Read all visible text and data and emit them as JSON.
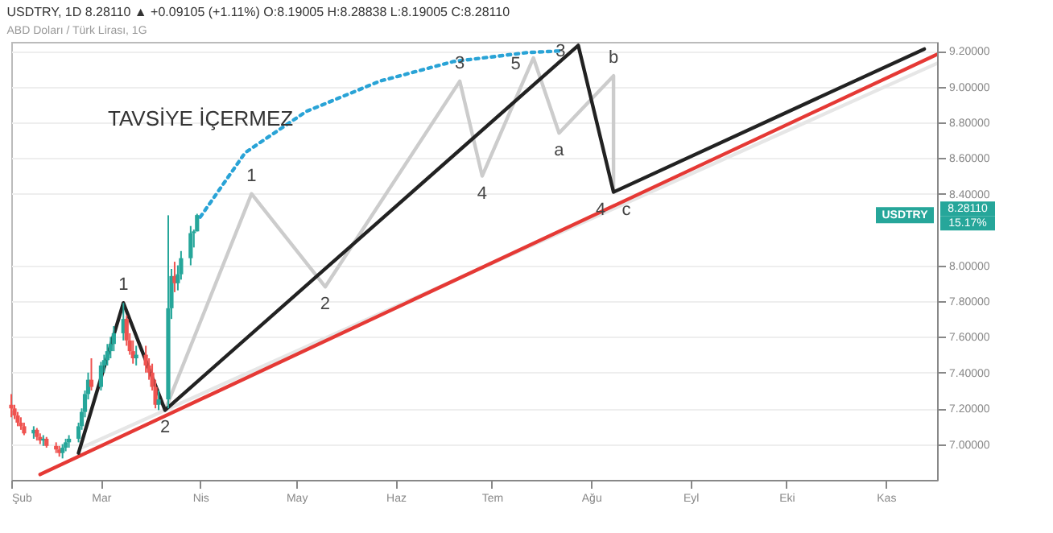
{
  "chart_data": {
    "type": "candlestick",
    "title": "USDTRY, 1D 8.28110 ▲ +0.09105 (+1.11%) O:8.19005 H:8.28838 L:8.19005 C:8.28110",
    "subtitle": "ABD Doları / Türk Lirası, 1G",
    "x": [
      "--02-01",
      "--02-02",
      "--02-03",
      "--02-04",
      "--02-05",
      "--02-08",
      "--02-09",
      "--02-10",
      "--02-11",
      "--02-12",
      "--02-15",
      "--02-16",
      "--02-17",
      "--02-18",
      "--02-19",
      "--02-22",
      "--02-23",
      "--02-24",
      "--02-25",
      "--02-26",
      "--03-01",
      "--03-02",
      "--03-03",
      "--03-04",
      "--03-05",
      "--03-08",
      "--03-09",
      "--03-10",
      "--03-11",
      "--03-12",
      "--03-15",
      "--03-16",
      "--03-17",
      "--03-18",
      "--03-19",
      "--03-22",
      "--03-23",
      "--03-24",
      "--03-25",
      "--03-26",
      "--03-29",
      "--03-30",
      "--03-31"
    ],
    "ohlc": [
      [
        7.22,
        7.28,
        7.15,
        7.2
      ],
      [
        7.2,
        7.22,
        7.14,
        7.16
      ],
      [
        7.16,
        7.18,
        7.1,
        7.12
      ],
      [
        7.12,
        7.15,
        7.08,
        7.1
      ],
      [
        7.1,
        7.12,
        7.05,
        7.06
      ],
      [
        7.06,
        7.1,
        7.03,
        7.08
      ],
      [
        7.08,
        7.09,
        7.02,
        7.04
      ],
      [
        7.04,
        7.06,
        7,
        7.02
      ],
      [
        7.02,
        7.05,
        6.99,
        7.03
      ],
      [
        7.03,
        7.04,
        6.98,
        6.99
      ],
      [
        6.99,
        7.01,
        6.95,
        6.97
      ],
      [
        6.97,
        6.99,
        6.93,
        6.95
      ],
      [
        6.95,
        7,
        6.92,
        6.98
      ],
      [
        6.98,
        7.03,
        6.96,
        7.01
      ],
      [
        7.01,
        7.05,
        6.98,
        7.03
      ],
      [
        7.03,
        7.12,
        7.01,
        7.1
      ],
      [
        7.1,
        7.2,
        7.08,
        7.18
      ],
      [
        7.18,
        7.3,
        7.15,
        7.28
      ],
      [
        7.28,
        7.4,
        7.25,
        7.36
      ],
      [
        7.36,
        7.48,
        7.3,
        7.32
      ],
      [
        7.32,
        7.46,
        7.3,
        7.44
      ],
      [
        7.44,
        7.5,
        7.4,
        7.47
      ],
      [
        7.47,
        7.56,
        7.44,
        7.52
      ],
      [
        7.52,
        7.6,
        7.48,
        7.56
      ],
      [
        7.56,
        7.66,
        7.52,
        7.62
      ],
      [
        7.62,
        7.79,
        7.58,
        7.7
      ],
      [
        7.7,
        7.72,
        7.55,
        7.58
      ],
      [
        7.58,
        7.62,
        7.5,
        7.52
      ],
      [
        7.52,
        7.58,
        7.45,
        7.48
      ],
      [
        7.48,
        7.55,
        7.44,
        7.5
      ],
      [
        7.5,
        7.55,
        7.4,
        7.44
      ],
      [
        7.44,
        7.48,
        7.36,
        7.4
      ],
      [
        7.4,
        7.45,
        7.3,
        7.32
      ],
      [
        7.32,
        7.36,
        7.2,
        7.22
      ],
      [
        7.22,
        7.3,
        7.19,
        7.25
      ],
      [
        7.25,
        8.28,
        7.2,
        7.76
      ],
      [
        7.76,
        7.98,
        7.7,
        7.94
      ],
      [
        7.94,
        8.02,
        7.85,
        7.9
      ],
      [
        7.9,
        8,
        7.86,
        7.95
      ],
      [
        7.95,
        8.08,
        7.92,
        8.04
      ],
      [
        8.04,
        8.22,
        8,
        8.18
      ],
      [
        8.18,
        8.2,
        8.1,
        8.19
      ],
      [
        8.19005,
        8.28838,
        8.19005,
        8.2811
      ]
    ],
    "colors": [
      "#ef5350",
      "#ef5350",
      "#ef5350",
      "#ef5350",
      "#ef5350",
      "#26a69a",
      "#ef5350",
      "#ef5350",
      "#26a69a",
      "#ef5350",
      "#ef5350",
      "#ef5350",
      "#26a69a",
      "#26a69a",
      "#26a69a",
      "#26a69a",
      "#26a69a",
      "#26a69a",
      "#26a69a",
      "#ef5350",
      "#26a69a",
      "#26a69a",
      "#26a69a",
      "#26a69a",
      "#26a69a",
      "#26a69a",
      "#ef5350",
      "#ef5350",
      "#ef5350",
      "#26a69a",
      "#ef5350",
      "#ef5350",
      "#ef5350",
      "#ef5350",
      "#26a69a",
      "#26a69a",
      "#26a69a",
      "#ef5350",
      "#26a69a",
      "#26a69a",
      "#26a69a",
      "#26a69a",
      "#26a69a"
    ],
    "series": [
      {
        "type": "line",
        "color": "#e6e6e6",
        "line_style": "solid",
        "x": [
          "--02-23",
          "--11-17"
        ],
        "values": [
          6.98,
          9.13
        ]
      },
      {
        "type": "line",
        "color": "#cccccc",
        "line_style": "solid",
        "x": [
          "--03-21",
          "--04-17",
          "--05-10",
          "--06-21",
          "--06-28",
          "--07-14",
          "--07-22",
          "--08-08",
          "--08-08"
        ],
        "values": [
          7.19,
          8.4,
          7.88,
          9.03,
          8.5,
          9.16,
          8.74,
          9.06,
          8.41
        ]
      },
      {
        "type": "line",
        "color": "#29a3d6",
        "line_style": "dotted",
        "x": [
          "--04-01",
          "--04-15",
          "--05-04",
          "--05-27",
          "--06-19",
          "--07-12",
          "--07-23"
        ],
        "values": [
          8.27,
          8.63,
          8.86,
          9.03,
          9.14,
          9.19,
          9.2
        ]
      },
      {
        "type": "line",
        "color": "#e53935",
        "line_style": "solid",
        "x": [
          "--02-10",
          "--11-17"
        ],
        "values": [
          6.83,
          9.18
        ]
      },
      {
        "type": "line",
        "color": "#222222",
        "line_style": "solid",
        "x": [
          "--02-22",
          "--03-08",
          "--03-21",
          "--07-28",
          "--08-08",
          "--11-13"
        ],
        "values": [
          6.95,
          7.79,
          7.19,
          9.23,
          8.41,
          9.21
        ]
      }
    ],
    "annotations": [
      "TAVSİYE İÇERMEZ",
      "USDTRY",
      "8.28110",
      "15.17%",
      {
        "text": "1",
        "x": "--03-08",
        "y": 7.79
      },
      {
        "text": "2",
        "x": "--03-21",
        "y": 7.19
      },
      {
        "text": "3",
        "x": "--07-28",
        "y": 9.23
      },
      {
        "text": "4",
        "x": "--08-08",
        "y": 8.41
      },
      {
        "text": "1",
        "x": "--04-17",
        "y": 8.4
      },
      {
        "text": "2",
        "x": "--05-10",
        "y": 7.88
      },
      {
        "text": "3",
        "x": "--06-21",
        "y": 9.03
      },
      {
        "text": "4",
        "x": "--06-28",
        "y": 8.5
      },
      {
        "text": "5",
        "x": "--07-14",
        "y": 9.16
      },
      {
        "text": "a",
        "x": "--07-22",
        "y": 8.74
      },
      {
        "text": "b",
        "x": "--08-08",
        "y": 9.06
      },
      {
        "text": "c",
        "x": "--08-08",
        "y": 8.41
      }
    ],
    "xlim": [
      "--02-01",
      "--11-17"
    ],
    "xticks": [
      {
        "value": "--02-01",
        "label": "Şub"
      },
      {
        "value": "--03-01",
        "label": "Mar"
      },
      {
        "value": "--04-01",
        "label": "Nis"
      },
      {
        "value": "--05-01",
        "label": "May"
      },
      {
        "value": "--06-01",
        "label": "Haz"
      },
      {
        "value": "--07-01",
        "label": "Tem"
      },
      {
        "value": "--08-01",
        "label": "Ağu"
      },
      {
        "value": "--09-01",
        "label": "Eyl"
      },
      {
        "value": "--10-01",
        "label": "Eki"
      },
      {
        "value": "--11-01",
        "label": "Kas"
      }
    ],
    "ylim": [
      6.8,
      9.25
    ],
    "yticks": [
      {
        "value": 7,
        "label": "7.00000"
      },
      {
        "value": 7.2,
        "label": "7.20000"
      },
      {
        "value": 7.4,
        "label": "7.40000"
      },
      {
        "value": 7.6,
        "label": "7.60000"
      },
      {
        "value": 7.8,
        "label": "7.80000"
      },
      {
        "value": 8,
        "label": "8.00000"
      },
      {
        "value": 8.4,
        "label": "8.40000"
      },
      {
        "value": 8.6,
        "label": "8.60000"
      },
      {
        "value": 8.8,
        "label": "8.80000"
      },
      {
        "value": 9,
        "label": "9.00000"
      },
      {
        "value": 9.2,
        "label": "9.20000"
      }
    ],
    "grid": "y"
  }
}
